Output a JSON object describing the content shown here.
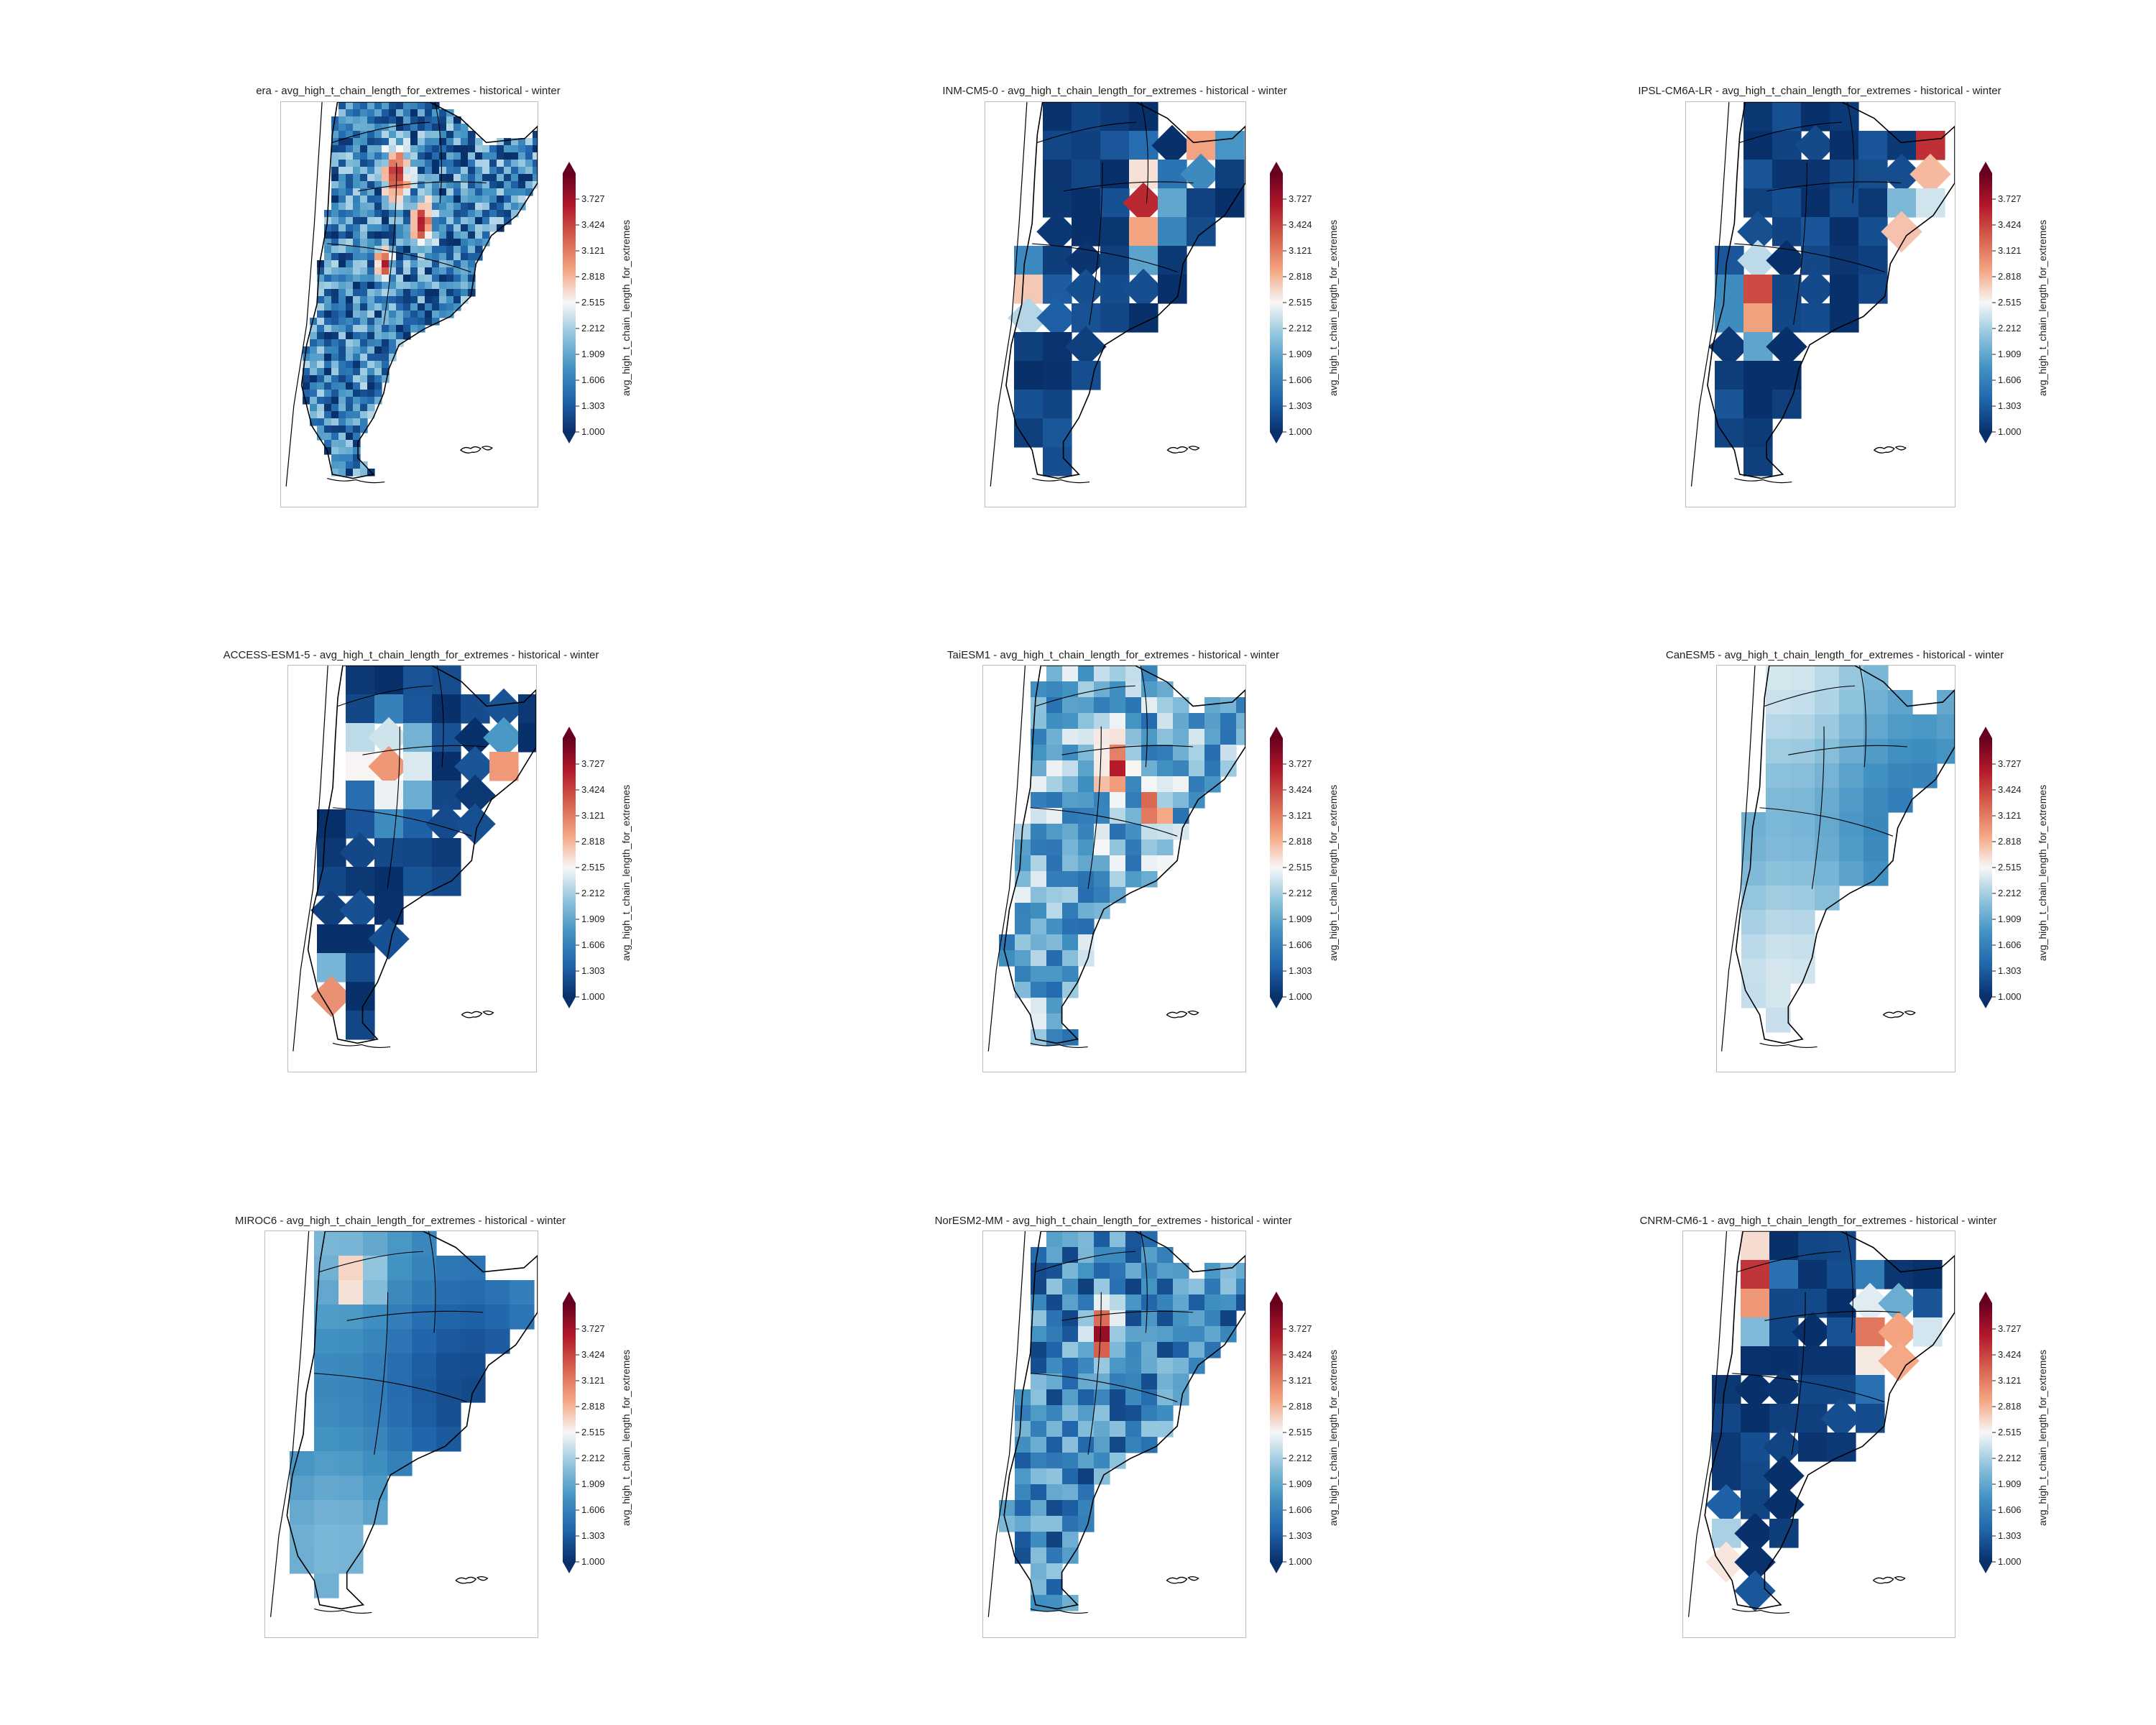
{
  "figure": {
    "variable": "avg_high_t_chain_length_for_extremes",
    "scenario": "historical",
    "season": "winter",
    "colormap": "RdBu_r",
    "colormap_stops": [
      "#08306b",
      "#2166ac",
      "#4393c3",
      "#92c5de",
      "#f7f7f7",
      "#f4a582",
      "#d6604d",
      "#b2182b",
      "#67001f"
    ],
    "colorbar": {
      "label": "avg_high_t_chain_length_for_extremes",
      "range": [
        1.0,
        4.03
      ],
      "extend": "both",
      "ticks": [
        "1.000",
        "1.303",
        "1.606",
        "1.909",
        "2.212",
        "2.515",
        "2.818",
        "3.121",
        "3.424",
        "3.727"
      ]
    },
    "region": "Argentina / southern South America",
    "coastline_color": "#000000",
    "frame_color": "#bdbdbd"
  },
  "panels": [
    {
      "title": "era - avg_high_t_chain_length_for_extremes - historical - winter",
      "model": "era",
      "pattern": "fine-mixed",
      "dominant": "mid-blue",
      "hotspots": "north-central red"
    },
    {
      "title": "INM-CM5-0 - avg_high_t_chain_length_for_extremes - historical - winter",
      "model": "INM-CM5-0",
      "pattern": "coarse-blocky",
      "dominant": "dark-blue",
      "hotspots": "northeast red, central red hexagon"
    },
    {
      "title": "IPSL-CM6A-LR - avg_high_t_chain_length_for_extremes - historical - winter",
      "model": "IPSL-CM6A-LR",
      "pattern": "coarse-blocky",
      "dominant": "dark-blue",
      "hotspots": "east red, west-central red"
    },
    {
      "title": "ACCESS-ESM1-5 - avg_high_t_chain_length_for_extremes - historical - winter",
      "model": "ACCESS-ESM1-5",
      "pattern": "coarse-blocky",
      "dominant": "dark-blue",
      "hotspots": "north-central red patches"
    },
    {
      "title": "TaiESM1 - avg_high_t_chain_length_for_extremes - historical - winter",
      "model": "TaiESM1",
      "pattern": "medium-mixed",
      "dominant": "light-blue",
      "hotspots": "north-central salmon"
    },
    {
      "title": "CanESM5 - avg_high_t_chain_length_for_extremes - historical - winter",
      "model": "CanESM5",
      "pattern": "smooth",
      "dominant": "light-blue",
      "hotspots": "none"
    },
    {
      "title": "MIROC6 - avg_high_t_chain_length_for_extremes - historical - winter",
      "model": "MIROC6",
      "pattern": "smooth",
      "dominant": "mid-blue",
      "hotspots": "none"
    },
    {
      "title": "NorESM2-MM - avg_high_t_chain_length_for_extremes - historical - winter",
      "model": "NorESM2-MM",
      "pattern": "medium-mixed",
      "dominant": "mid-blue",
      "hotspots": "far north red"
    },
    {
      "title": "CNRM-CM6-1 - avg_high_t_chain_length_for_extremes - historical - winter",
      "model": "CNRM-CM6-1",
      "pattern": "coarse-blocky",
      "dominant": "dark-blue",
      "hotspots": "northeast red diagonal, southwest red"
    }
  ]
}
